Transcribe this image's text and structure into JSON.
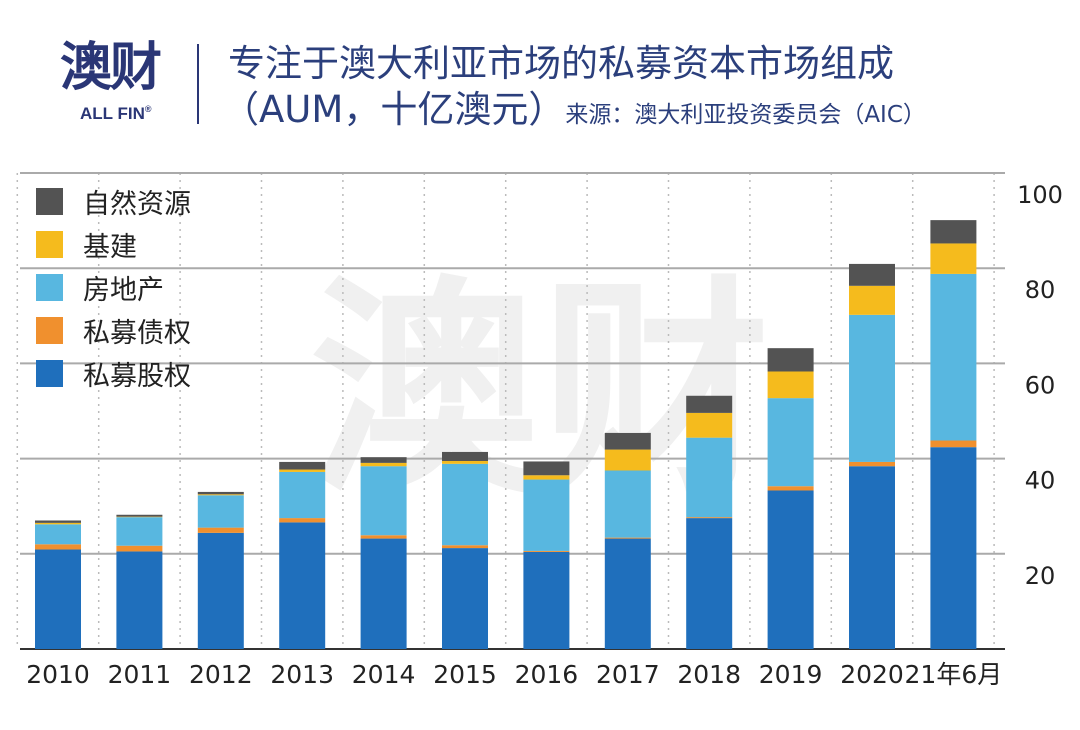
{
  "header": {
    "logo_cn": "澳财",
    "logo_en": "ALL FIN",
    "logo_reg": "®",
    "title_line1": "专注于澳大利亚市场的私募资本市场组成",
    "title_line2": "（AUM，十亿澳元）",
    "source": "来源：澳大利亚投资委员会（AIC）"
  },
  "colors": {
    "brand": "#2a3676",
    "title": "#2b3f7c"
  },
  "chart_data": {
    "type": "bar",
    "stacked": true,
    "categories": [
      "2010",
      "2011",
      "2012",
      "2013",
      "2014",
      "2015",
      "2016",
      "2017",
      "2018",
      "2019",
      "2020",
      "21年6月"
    ],
    "ylim": [
      0,
      100
    ],
    "yticks": [
      20,
      40,
      60,
      80,
      100
    ],
    "grid": true,
    "legend_position": "top-left",
    "y_axis_side": "right",
    "series": [
      {
        "name": "私募股权",
        "color": "#1f6fbc",
        "values": [
          20.9,
          20.5,
          24.4,
          26.6,
          23.2,
          21.2,
          20.4,
          23.2,
          27.5,
          33.3,
          38.4,
          42.4
        ]
      },
      {
        "name": "私募债权",
        "color": "#f0902e",
        "values": [
          1.1,
          1.2,
          1.1,
          0.9,
          0.7,
          0.6,
          0.2,
          0.2,
          0.2,
          0.9,
          0.9,
          1.4
        ]
      },
      {
        "name": "房地产",
        "color": "#58b7e0",
        "values": [
          4.2,
          6.0,
          6.8,
          9.7,
          14.5,
          17.1,
          15.0,
          14.1,
          16.7,
          18.5,
          30.9,
          35.0
        ]
      },
      {
        "name": "基建",
        "color": "#f5bb1d",
        "values": [
          0.3,
          0.1,
          0.2,
          0.5,
          0.7,
          0.6,
          0.9,
          4.4,
          5.2,
          5.6,
          6.1,
          6.4
        ]
      },
      {
        "name": "自然资源",
        "color": "#535353",
        "values": [
          0.5,
          0.4,
          0.5,
          1.6,
          1.2,
          1.9,
          2.9,
          3.5,
          3.6,
          4.9,
          4.6,
          4.9
        ]
      }
    ]
  }
}
